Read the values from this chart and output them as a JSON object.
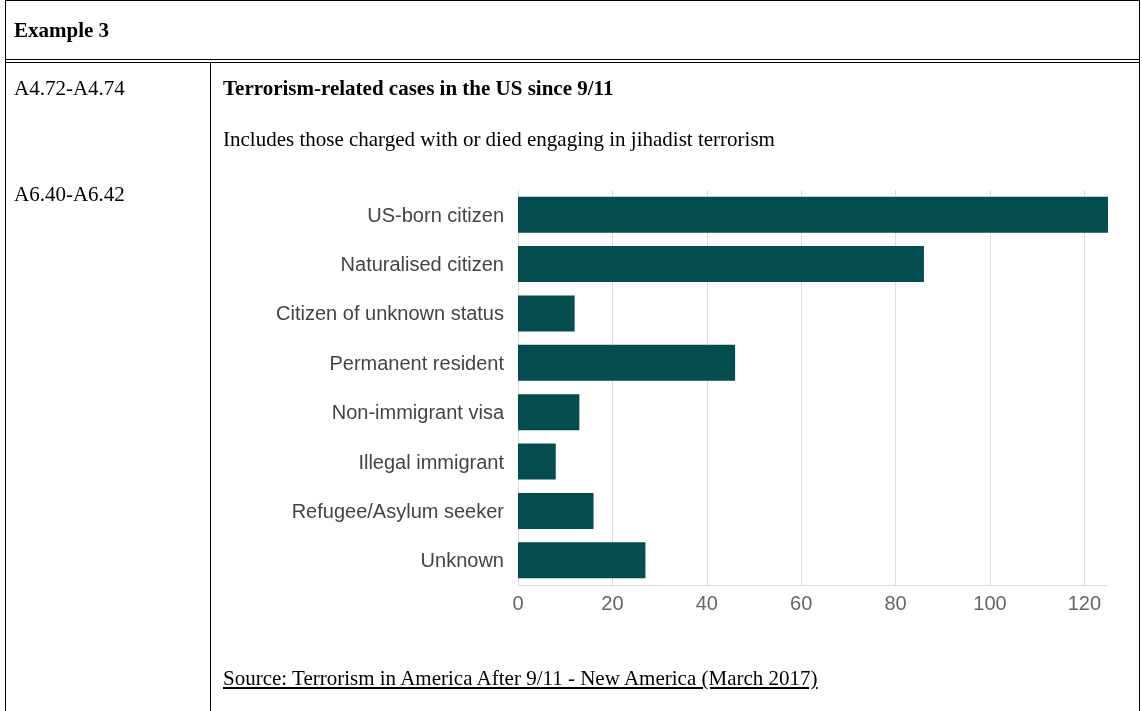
{
  "chart_data": {
    "type": "bar",
    "orientation": "horizontal",
    "title": "Terrorism-related cases in the US since 9/11",
    "subtitle": "Includes those charged with or died engaging in jihadist terrorism",
    "categories": [
      "US-born citizen",
      "Naturalised citizen",
      "Citizen of unknown status",
      "Permanent resident",
      "Non-immigrant visa",
      "Illegal immigrant",
      "Refugee/Asylum seeker",
      "Unknown"
    ],
    "values": [
      125,
      86,
      12,
      46,
      13,
      8,
      16,
      27
    ],
    "color": "#034d4e",
    "xlim": [
      0,
      125
    ],
    "xticks": [
      0,
      20,
      40,
      60,
      80,
      100,
      120
    ],
    "grid": "x",
    "annotations": [
      "Example 3",
      "A4.72-A4.74",
      "A6.40-A6.42",
      "Source: Terrorism in America After 9/11 - New America (March 2017)"
    ]
  }
}
